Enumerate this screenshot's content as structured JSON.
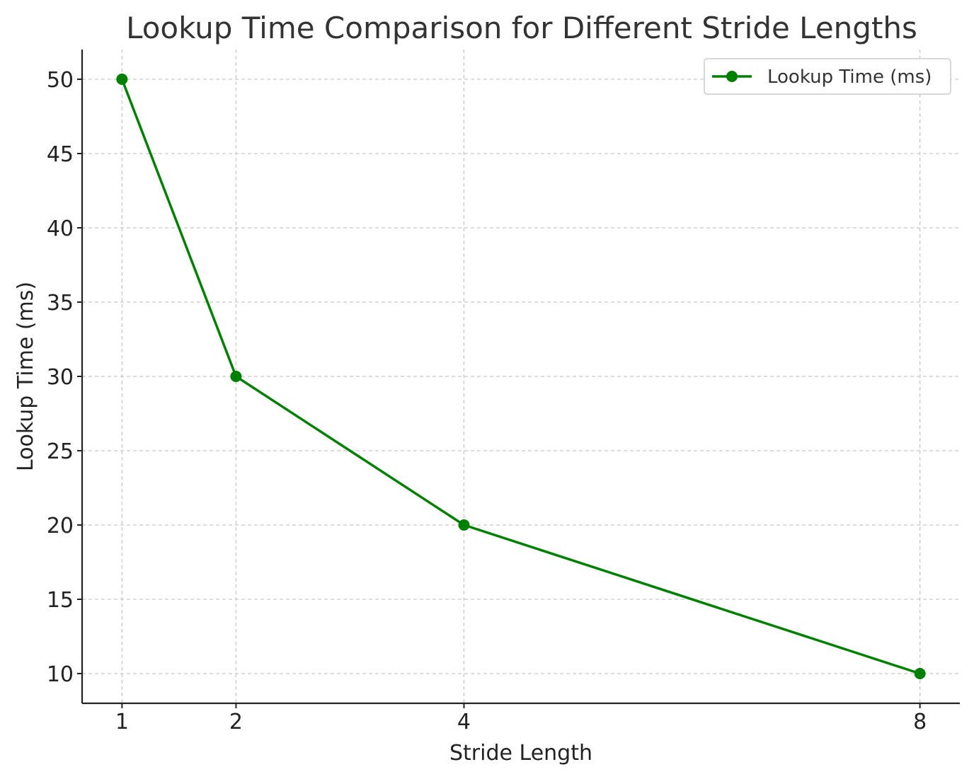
{
  "chart_data": {
    "type": "line",
    "title": "Lookup Time Comparison for Different Stride Lengths",
    "xlabel": "Stride Length",
    "ylabel": "Lookup Time (ms)",
    "x": [
      1,
      2,
      4,
      8
    ],
    "x_ticks": [
      1,
      2,
      4,
      8
    ],
    "y_ticks": [
      10,
      15,
      20,
      25,
      30,
      35,
      40,
      45,
      50
    ],
    "xlim": [
      0.65,
      8.35
    ],
    "ylim": [
      8,
      52
    ],
    "grid": true,
    "legend_position": "top-right",
    "series": [
      {
        "name": "Lookup Time (ms)",
        "values": [
          50,
          30,
          20,
          10
        ],
        "color": "#008000",
        "marker": "circle"
      }
    ]
  }
}
